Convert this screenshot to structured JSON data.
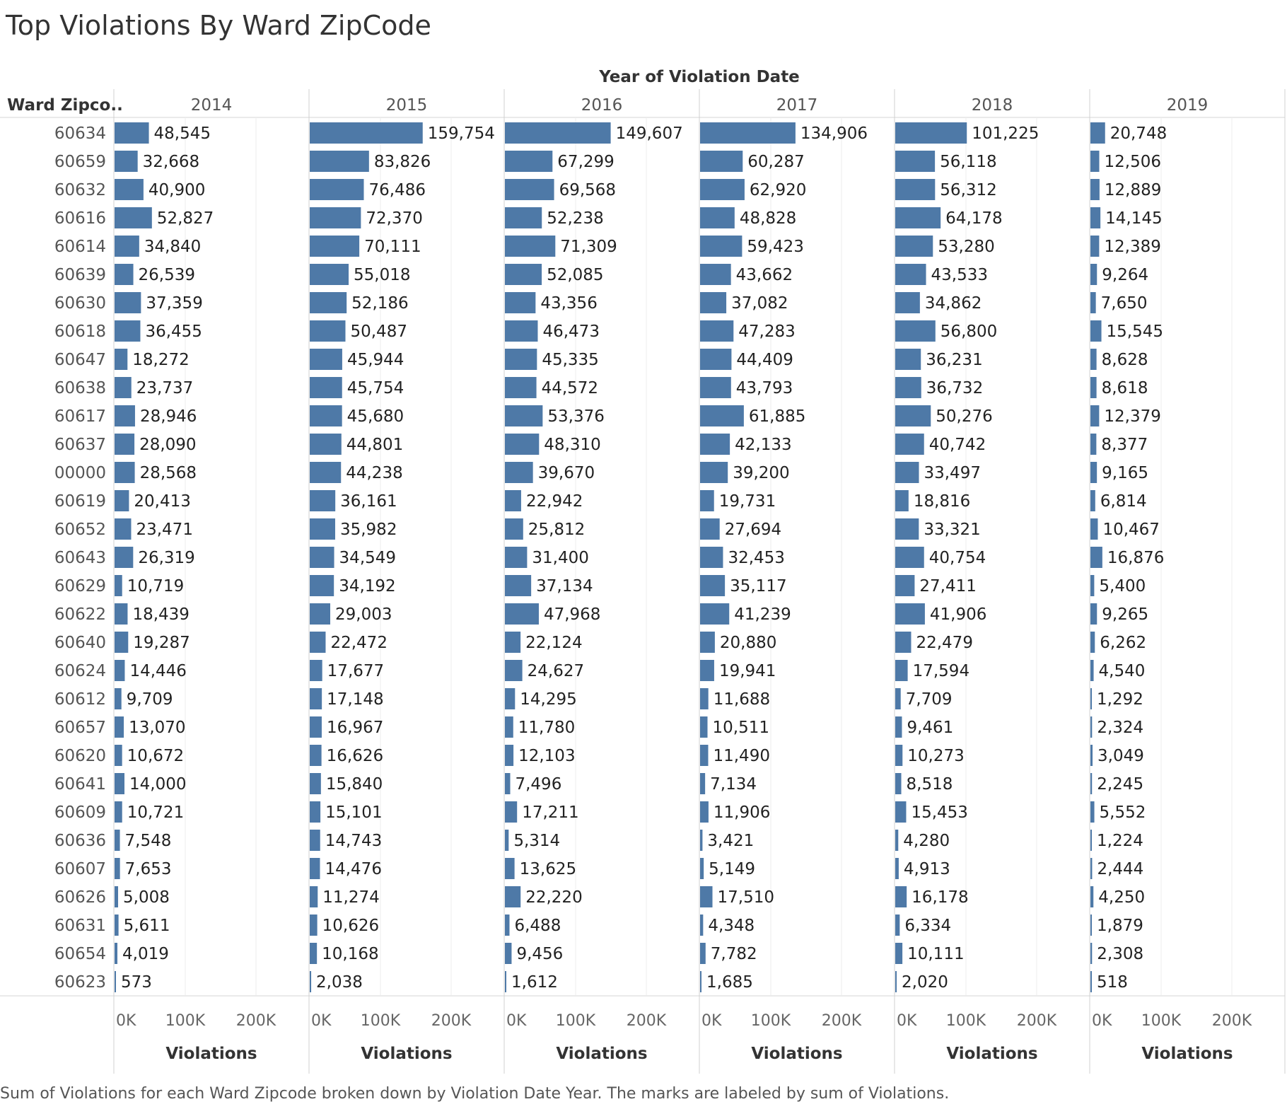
{
  "title": "Top Violations By Ward ZipCode",
  "caption": "Sum of Violations for each Ward Zipcode broken down by Violation Date Year.  The marks are labeled by sum of Violations.",
  "chart_data": {
    "type": "bar",
    "orientation": "horizontal",
    "column_header_title": "Year of Violation Date",
    "row_header_title": "Ward Zipco..",
    "xlabel": "Violations",
    "xlim": [
      0,
      250000
    ],
    "xticks": [
      "0K",
      "100K",
      "200K"
    ],
    "xtick_values": [
      0,
      100000,
      200000
    ],
    "bar_color": "#4e79a7",
    "grid": true,
    "categories": [
      "60634",
      "60659",
      "60632",
      "60616",
      "60614",
      "60639",
      "60630",
      "60618",
      "60647",
      "60638",
      "60617",
      "60637",
      "00000",
      "60619",
      "60652",
      "60643",
      "60629",
      "60622",
      "60640",
      "60624",
      "60612",
      "60657",
      "60620",
      "60641",
      "60609",
      "60636",
      "60607",
      "60626",
      "60631",
      "60654",
      "60623"
    ],
    "series": [
      {
        "name": "2014",
        "values": [
          48545,
          32668,
          40900,
          52827,
          34840,
          26539,
          37359,
          36455,
          18272,
          23737,
          28946,
          28090,
          28568,
          20413,
          23471,
          26319,
          10719,
          18439,
          19287,
          14446,
          9709,
          13070,
          10672,
          14000,
          10721,
          7548,
          7653,
          5008,
          5611,
          4019,
          573
        ]
      },
      {
        "name": "2015",
        "values": [
          159754,
          83826,
          76486,
          72370,
          70111,
          55018,
          52186,
          50487,
          45944,
          45754,
          45680,
          44801,
          44238,
          36161,
          35982,
          34549,
          34192,
          29003,
          22472,
          17677,
          17148,
          16967,
          16626,
          15840,
          15101,
          14743,
          14476,
          11274,
          10626,
          10168,
          2038
        ]
      },
      {
        "name": "2016",
        "values": [
          149607,
          67299,
          69568,
          52238,
          71309,
          52085,
          43356,
          46473,
          45335,
          44572,
          53376,
          48310,
          39670,
          22942,
          25812,
          31400,
          37134,
          47968,
          22124,
          24627,
          14295,
          11780,
          12103,
          7496,
          17211,
          5314,
          13625,
          22220,
          6488,
          9456,
          1612
        ]
      },
      {
        "name": "2017",
        "values": [
          134906,
          60287,
          62920,
          48828,
          59423,
          43662,
          37082,
          47283,
          44409,
          43793,
          61885,
          42133,
          39200,
          19731,
          27694,
          32453,
          35117,
          41239,
          20880,
          19941,
          11688,
          10511,
          11490,
          7134,
          11906,
          3421,
          5149,
          17510,
          4348,
          7782,
          1685
        ]
      },
      {
        "name": "2018",
        "values": [
          101225,
          56118,
          56312,
          64178,
          53280,
          43533,
          34862,
          56800,
          36231,
          36732,
          50276,
          40742,
          33497,
          18816,
          33321,
          40754,
          27411,
          41906,
          22479,
          17594,
          7709,
          9461,
          10273,
          8518,
          15453,
          4280,
          4913,
          16178,
          6334,
          10111,
          2020
        ]
      },
      {
        "name": "2019",
        "values": [
          20748,
          12506,
          12889,
          14145,
          12389,
          9264,
          7650,
          15545,
          8628,
          8618,
          12379,
          8377,
          9165,
          6814,
          10467,
          16876,
          5400,
          9265,
          6262,
          4540,
          1292,
          2324,
          3049,
          2245,
          5552,
          1224,
          2444,
          4250,
          1879,
          2308,
          518
        ]
      }
    ]
  }
}
